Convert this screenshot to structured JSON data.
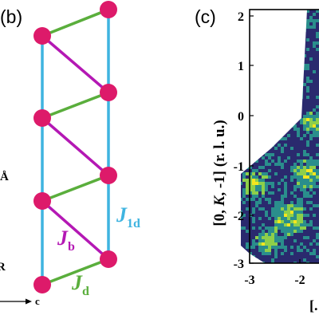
{
  "panel_b": {
    "label": "(b)",
    "labels": {
      "j1d_main": "J",
      "j1d_sub": "1d",
      "jb_main": "J",
      "jb_sub": "b",
      "jd_main": "J",
      "jd_sub": "d",
      "axis_c": "c",
      "angstrom": "Å",
      "cut_left": "R"
    },
    "colors": {
      "j1d": "#3fb4e0",
      "jb": "#b418b4",
      "jd": "#5aae3c",
      "atom": "#dd1a6a"
    }
  },
  "panel_c": {
    "label": "(c)",
    "ylabel": {
      "a": "[0, ",
      "b": "K",
      "c": ", -1] (r. l. u.)"
    },
    "xlabel_fragment": "[.",
    "y_ticks": [
      "2",
      "1",
      "0",
      "-1",
      "-2",
      "-3"
    ],
    "x_ticks": [
      "-3",
      "-2"
    ],
    "colors": {
      "dark": "#2a2a6e",
      "mid": "#2a8e8c",
      "high": "#8ecf4a",
      "peak": "#f6e61e",
      "bg": "#ffffff"
    }
  }
}
